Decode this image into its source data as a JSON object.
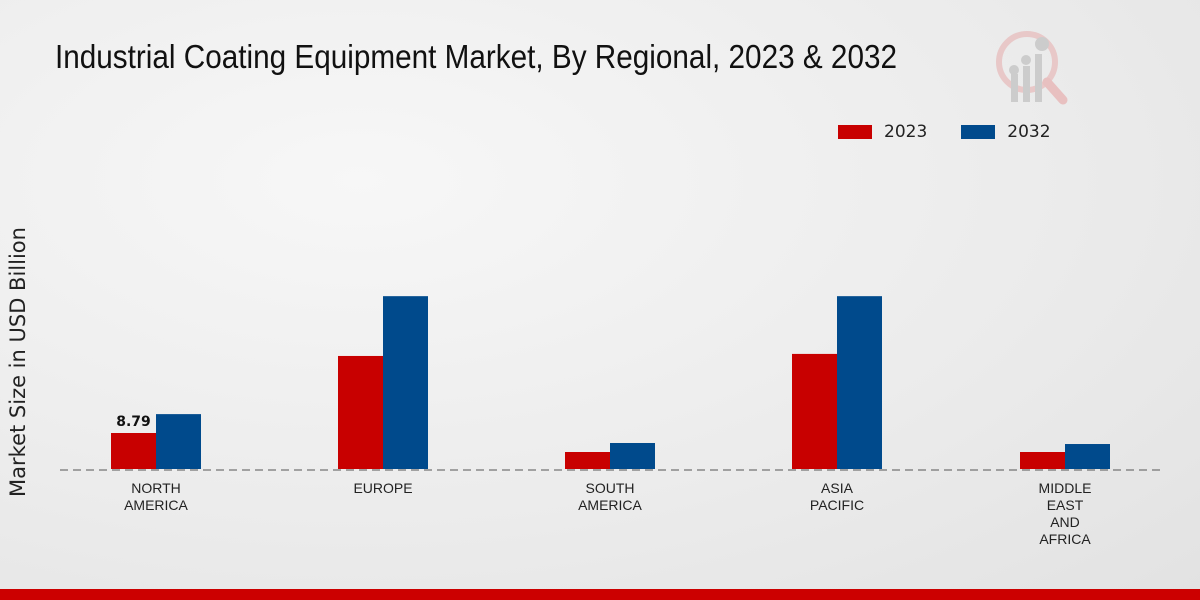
{
  "chart_data": {
    "type": "bar",
    "title": "Industrial Coating Equipment Market, By Regional, 2023 & 2032",
    "xlabel": "",
    "ylabel": "Market Size in USD Billion",
    "categories": [
      [
        "NORTH",
        "AMERICA"
      ],
      [
        "EUROPE"
      ],
      [
        "SOUTH",
        "AMERICA"
      ],
      [
        "ASIA",
        "PACIFIC"
      ],
      [
        "MIDDLE",
        "EAST",
        "AND",
        "AFRICA"
      ]
    ],
    "series": [
      {
        "name": "2023",
        "color": "#c80000",
        "values": [
          8.79,
          27.6,
          4.15,
          28.1,
          4.15
        ]
      },
      {
        "name": "2032",
        "color": "#004a8c",
        "values": [
          13.4,
          42.2,
          6.35,
          42.2,
          6.1
        ]
      }
    ],
    "data_labels": [
      {
        "series": 0,
        "index": 0,
        "text": "8.79"
      }
    ],
    "ylim": [
      0,
      50
    ],
    "legend": "top-right",
    "grid": false
  }
}
